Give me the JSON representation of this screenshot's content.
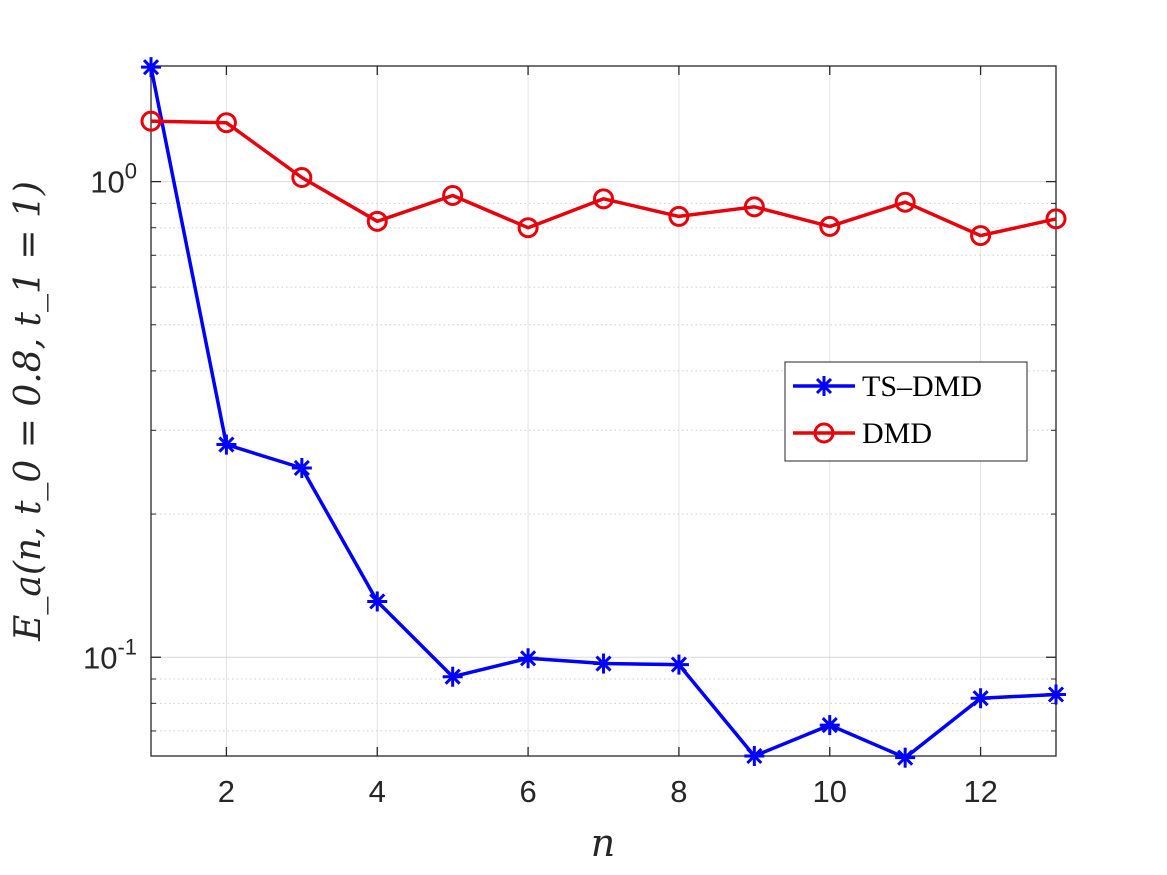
{
  "chart_data": {
    "type": "line",
    "title": "",
    "xlabel": "n",
    "ylabel": "E_a(n, t_0 = 0.8, t_1 = 1)",
    "x": [
      1,
      2,
      3,
      4,
      5,
      6,
      7,
      8,
      9,
      10,
      11,
      12,
      13
    ],
    "xlim": [
      1,
      13
    ],
    "ylim": [
      0.062,
      1.75
    ],
    "yscale": "log",
    "xticks": [
      2,
      4,
      6,
      8,
      10,
      12
    ],
    "xtick_labels": [
      "2",
      "4",
      "6",
      "8",
      "10",
      "12"
    ],
    "yticks": [
      0.1,
      1
    ],
    "ytick_base": "10",
    "ytick_exponents": [
      "-1",
      "0"
    ],
    "grid": true,
    "legend_position": "right",
    "series": [
      {
        "name": "TS–DMD",
        "color": "#0000ff",
        "marker": "asterisk",
        "values": [
          1.74,
          0.28,
          0.25,
          0.131,
          0.091,
          0.0995,
          0.097,
          0.0965,
          0.062,
          0.072,
          0.0615,
          0.082,
          0.0835
        ]
      },
      {
        "name": "DMD",
        "color": "#e8000b",
        "marker": "circle",
        "values": [
          1.34,
          1.33,
          1.02,
          0.825,
          0.935,
          0.8,
          0.92,
          0.845,
          0.885,
          0.805,
          0.905,
          0.77,
          0.835
        ]
      }
    ]
  }
}
